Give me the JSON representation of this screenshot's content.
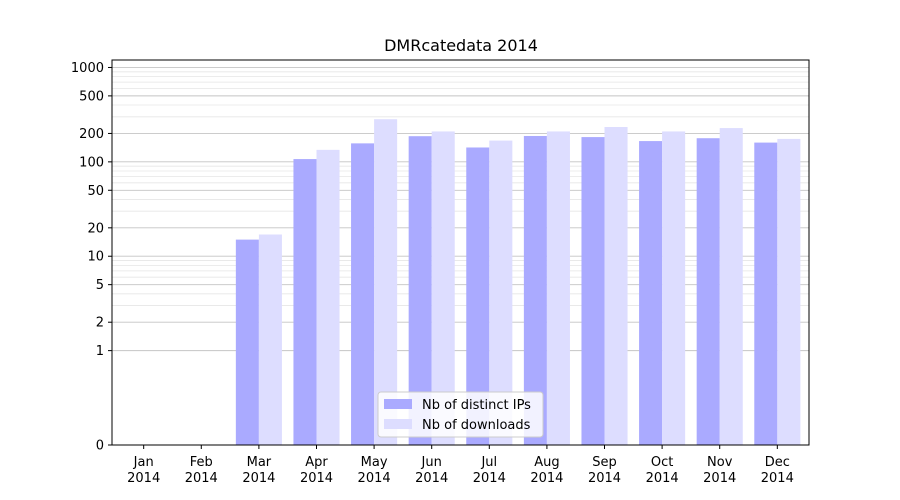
{
  "chart_data": {
    "type": "bar",
    "title": "DMRcatedata 2014",
    "xlabel": "",
    "ylabel": "",
    "y_scale": "symlog",
    "ylim": [
      0,
      1200
    ],
    "yticks": [
      0,
      1,
      2,
      5,
      10,
      20,
      50,
      100,
      200,
      500,
      1000
    ],
    "categories": [
      [
        "Jan",
        "2014"
      ],
      [
        "Feb",
        "2014"
      ],
      [
        "Mar",
        "2014"
      ],
      [
        "Apr",
        "2014"
      ],
      [
        "May",
        "2014"
      ],
      [
        "Jun",
        "2014"
      ],
      [
        "Jul",
        "2014"
      ],
      [
        "Aug",
        "2014"
      ],
      [
        "Sep",
        "2014"
      ],
      [
        "Oct",
        "2014"
      ],
      [
        "Nov",
        "2014"
      ],
      [
        "Dec",
        "2014"
      ]
    ],
    "series": [
      {
        "name": "Nb of distinct IPs",
        "color": "#aaaaff",
        "values": [
          0,
          0,
          15,
          107,
          157,
          187,
          142,
          188,
          183,
          166,
          178,
          160
        ]
      },
      {
        "name": "Nb of downloads",
        "color": "#ddddff",
        "values": [
          0,
          0,
          17,
          134,
          283,
          210,
          168,
          210,
          234,
          210,
          228,
          175
        ]
      }
    ],
    "grid": true,
    "legend_position": "bottom-center"
  }
}
